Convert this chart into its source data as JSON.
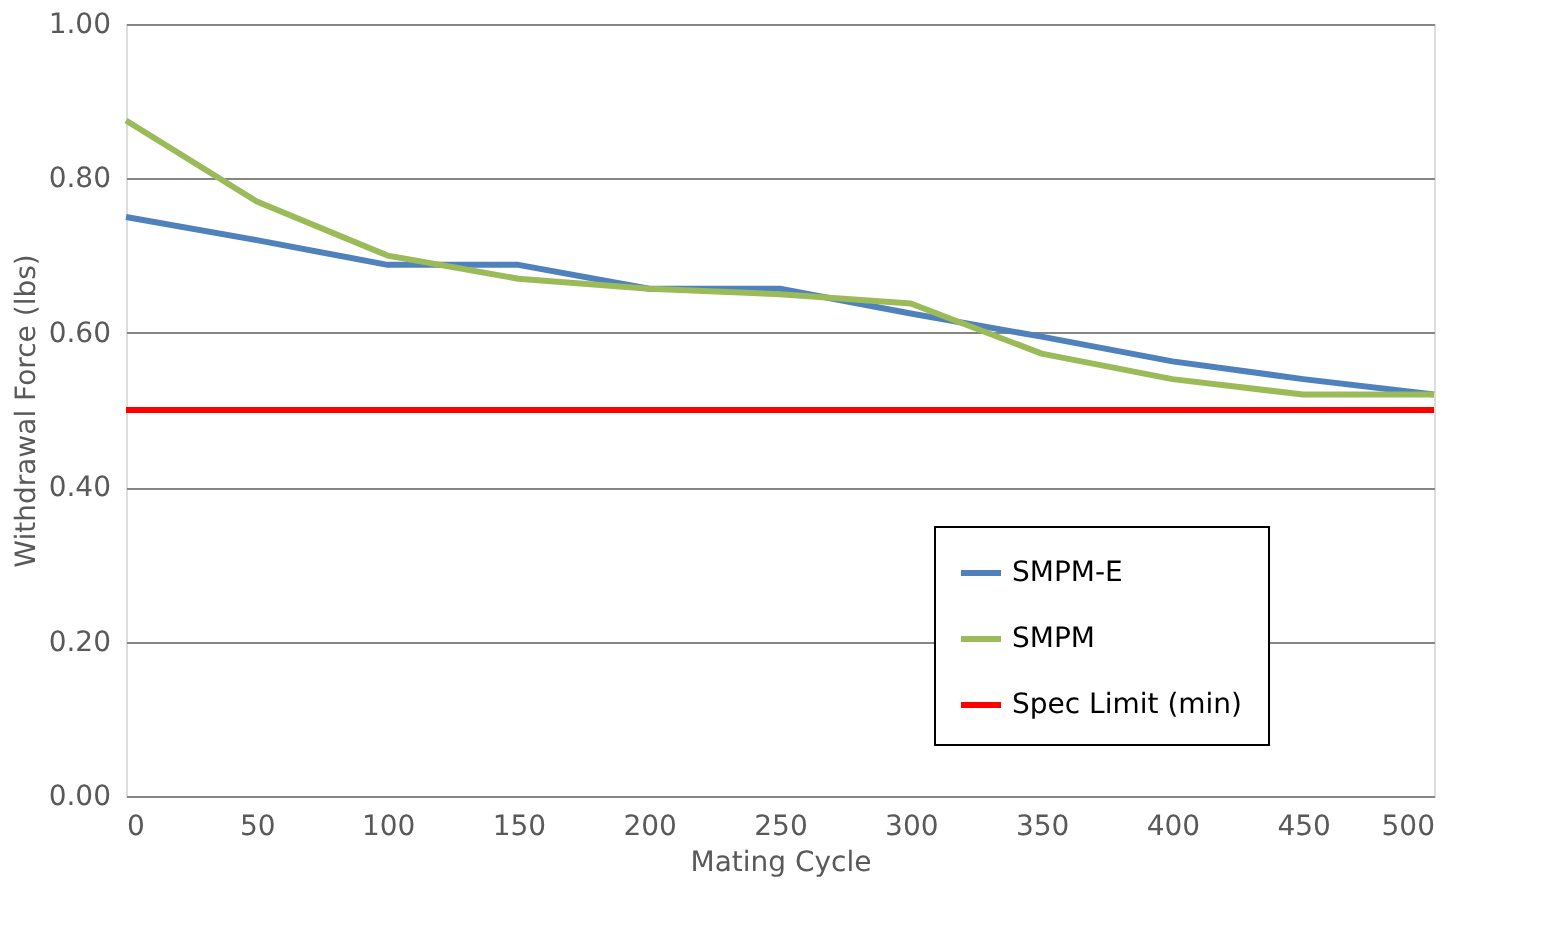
{
  "chart_data": {
    "type": "line",
    "xlabel": "Mating Cycle",
    "ylabel": "Withdrawal Force (lbs)",
    "x": [
      0,
      50,
      100,
      150,
      200,
      250,
      300,
      350,
      400,
      450,
      500
    ],
    "series": [
      {
        "name": "SMPM-E",
        "color": "#4f81bd",
        "values": [
          0.75,
          0.72,
          0.688,
          0.688,
          0.657,
          0.657,
          0.625,
          0.595,
          0.563,
          0.54,
          0.52
        ]
      },
      {
        "name": "SMPM",
        "color": "#9bbb59",
        "values": [
          0.875,
          0.77,
          0.7,
          0.67,
          0.657,
          0.65,
          0.638,
          0.573,
          0.54,
          0.52,
          0.52
        ]
      }
    ],
    "ref_lines": [
      {
        "axis": "y",
        "value": 0.5,
        "label": "Spec Limit (min)",
        "color": "#ff0000"
      }
    ],
    "xlim": [
      0,
      500
    ],
    "xticks": [
      0,
      50,
      100,
      150,
      200,
      250,
      300,
      350,
      400,
      450,
      500
    ],
    "ylim": [
      0,
      1.0
    ],
    "yticks": [
      {
        "value": 0,
        "label": "0.00"
      },
      {
        "value": 0.2,
        "label": "0.20"
      },
      {
        "value": 0.4,
        "label": "0.40"
      },
      {
        "value": 0.6,
        "label": "0.60"
      },
      {
        "value": 0.8,
        "label": "0.80"
      },
      {
        "value": 1.0,
        "label": "1.00"
      }
    ],
    "grid": "y",
    "legend": "bottom right",
    "marker": "none",
    "line_style": "solid"
  }
}
